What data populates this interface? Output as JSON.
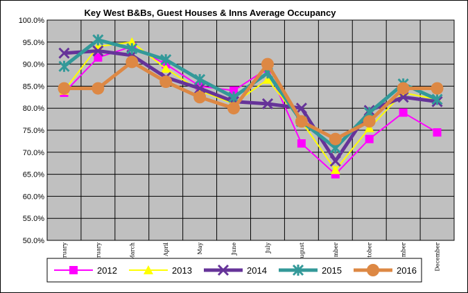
{
  "chart_data": {
    "type": "line",
    "title": "Key West B&Bs, Guest Houses & Inns Average Occupancy",
    "categories": [
      "January",
      "February",
      "March",
      "April",
      "May",
      "June",
      "July",
      "August",
      "September",
      "October",
      "November",
      "December"
    ],
    "category_labels_visible": [
      "ruary",
      "ruary",
      "March",
      "April",
      "May",
      "June",
      "July",
      "ugust",
      "mber",
      "tober",
      "mber",
      "December"
    ],
    "yticks": [
      "100.0%",
      "95.0%",
      "90.0%",
      "85.0%",
      "80.0%",
      "75.0%",
      "70.0%",
      "65.0%",
      "60.0%",
      "55.0%",
      "50.0%"
    ],
    "ylim": [
      50,
      100
    ],
    "grid": true,
    "legend_position": "bottom",
    "plot_background": "#c0c0c0",
    "series": [
      {
        "name": "2012",
        "color": "#ff00ff",
        "marker": "square",
        "values": [
          83.5,
          91.5,
          94.0,
          90.0,
          85.0,
          84.0,
          89.0,
          72.0,
          65.0,
          73.0,
          79.0,
          74.5
        ]
      },
      {
        "name": "2013",
        "color": "#ffff00",
        "marker": "triangle",
        "values": [
          84.0,
          94.0,
          95.0,
          89.0,
          84.0,
          81.0,
          86.5,
          77.0,
          66.0,
          75.5,
          83.5,
          82.0
        ]
      },
      {
        "name": "2014",
        "color": "#663399",
        "marker": "x",
        "values": [
          92.5,
          93.0,
          92.0,
          87.0,
          84.5,
          81.5,
          81.0,
          80.0,
          68.0,
          79.5,
          82.5,
          81.5
        ]
      },
      {
        "name": "2015",
        "color": "#339999",
        "marker": "star",
        "values": [
          89.5,
          95.5,
          93.5,
          91.0,
          86.5,
          82.5,
          88.0,
          77.0,
          71.0,
          79.0,
          85.5,
          82.0
        ]
      },
      {
        "name": "2016",
        "color": "#dd8844",
        "marker": "circle",
        "values": [
          84.5,
          84.5,
          90.5,
          86.0,
          82.5,
          80.0,
          90.0,
          77.0,
          73.0,
          77.0,
          84.5,
          84.5
        ]
      }
    ]
  }
}
